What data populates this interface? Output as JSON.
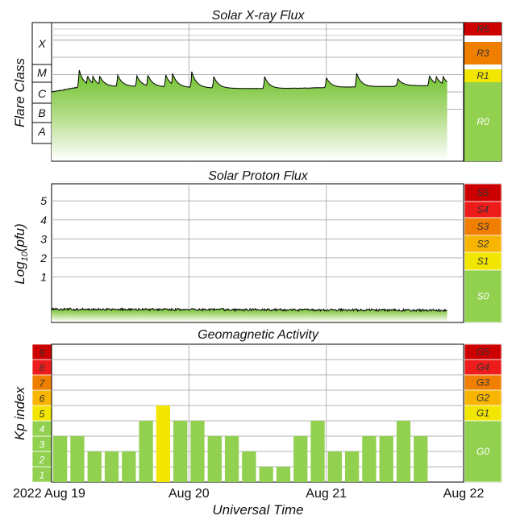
{
  "chart_data": [
    {
      "type": "area",
      "title": "Solar X-ray Flux",
      "ylabel": "Flare Class",
      "scale": "log",
      "flare_classes": [
        "X",
        "M",
        "C",
        "B",
        "A"
      ],
      "x_range_days": [
        0,
        3
      ],
      "flux_start": "1.0e-7",
      "flux_background_end": "5.5e-7",
      "flares": [
        {
          "t": 0.2,
          "peak": "2.0e-6"
        },
        {
          "t": 0.26,
          "peak": "9.0e-7"
        },
        {
          "t": 0.3,
          "peak": "8.0e-7"
        },
        {
          "t": 0.35,
          "peak": "8.5e-7"
        },
        {
          "t": 0.48,
          "peak": "1.0e-6"
        },
        {
          "t": 0.62,
          "peak": "9.0e-7"
        },
        {
          "t": 0.7,
          "peak": "1.0e-6"
        },
        {
          "t": 0.83,
          "peak": "1.0e-6"
        },
        {
          "t": 0.88,
          "peak": "1.2e-6"
        },
        {
          "t": 1.02,
          "peak": "1.5e-6"
        },
        {
          "t": 1.18,
          "peak": "8.0e-7"
        },
        {
          "t": 1.55,
          "peak": "8.0e-7"
        },
        {
          "t": 2.0,
          "peak": "7.0e-7"
        },
        {
          "t": 2.22,
          "peak": "1.3e-6"
        },
        {
          "t": 2.52,
          "peak": "6.0e-7"
        },
        {
          "t": 2.75,
          "peak": "9.0e-7"
        },
        {
          "t": 2.8,
          "peak": "8.0e-7"
        },
        {
          "t": 2.85,
          "peak": "8.0e-7"
        }
      ],
      "scale_labels": [
        {
          "label": "R5",
          "color": "#cc0000"
        },
        {
          "label": "R3",
          "color": "#f07f00"
        },
        {
          "label": "R1",
          "color": "#f2e600"
        },
        {
          "label": "R0",
          "color": "#92d050"
        }
      ]
    },
    {
      "type": "area",
      "title": "Solar Proton Flux",
      "ylabel": "Log10(pfu)",
      "ylabel_main": "Log",
      "ylabel_sub": "10",
      "ylabel_tail": "(pfu)",
      "y_ticks": [
        "1",
        "2",
        "3",
        "4",
        "5"
      ],
      "ylim": [
        -1.4,
        5.9
      ],
      "x_range_days": [
        0,
        3
      ],
      "log_pfu_level": -0.7,
      "scale_labels": [
        {
          "label": "S5",
          "color": "#cc0000"
        },
        {
          "label": "S4",
          "color": "#ee1b1b"
        },
        {
          "label": "S3",
          "color": "#f07f00"
        },
        {
          "label": "S2",
          "color": "#f7b500"
        },
        {
          "label": "S1",
          "color": "#f2e600"
        },
        {
          "label": "S0",
          "color": "#92d050"
        }
      ]
    },
    {
      "type": "bar",
      "title": "Geomagnetic Activity",
      "ylabel": "Kp index",
      "y_ticks": [
        "1",
        "2",
        "3",
        "4",
        "5",
        "6",
        "7",
        "8",
        "9"
      ],
      "ylim": [
        0,
        9
      ],
      "bar_width_hours": 3,
      "x_range_days": [
        0,
        3
      ],
      "values": [
        3,
        3,
        2,
        2,
        2,
        4,
        5,
        4,
        4,
        3,
        3,
        2,
        1,
        1,
        3,
        4,
        2,
        2,
        3,
        3,
        4,
        3
      ],
      "colors": {
        "quiet": "#92d050",
        "G1": "#f2e600"
      },
      "scale_labels": [
        {
          "label": "G5",
          "color": "#cc0000"
        },
        {
          "label": "G4",
          "color": "#ee1b1b"
        },
        {
          "label": "G3",
          "color": "#f07f00"
        },
        {
          "label": "G2",
          "color": "#f7b500"
        },
        {
          "label": "G1",
          "color": "#f2e600"
        },
        {
          "label": "G0",
          "color": "#92d050"
        }
      ]
    }
  ],
  "x_axis": {
    "title": "Universal Time",
    "labels": [
      {
        "text": "2022 Aug 19",
        "day": 0
      },
      {
        "text": "Aug 20",
        "day": 1
      },
      {
        "text": "Aug 21",
        "day": 2
      },
      {
        "text": "Aug 22",
        "day": 3
      }
    ]
  }
}
